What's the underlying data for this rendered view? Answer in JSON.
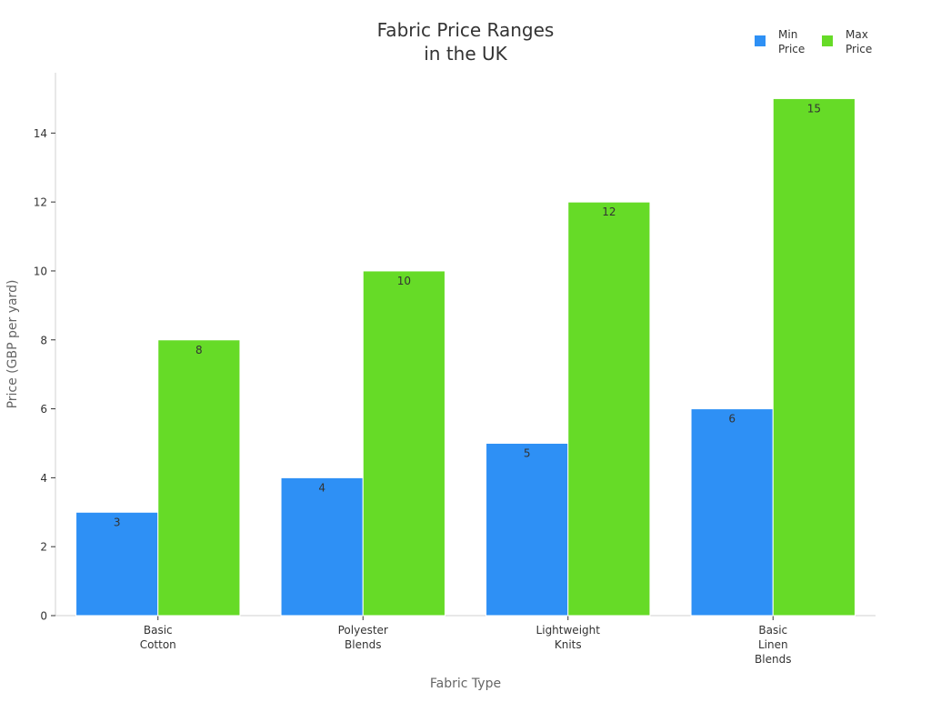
{
  "chart_data": {
    "type": "bar",
    "title": [
      "Fabric Price Ranges",
      "in the UK"
    ],
    "xlabel": "Fabric Type",
    "ylabel": "Price (GBP per yard)",
    "categories": [
      [
        "Basic",
        "Cotton"
      ],
      [
        "Polyester",
        "Blends"
      ],
      [
        "Lightweight",
        "Knits"
      ],
      [
        "Basic",
        "Linen",
        "Blends"
      ]
    ],
    "series": [
      {
        "name": [
          "Min",
          "Price"
        ],
        "color": "#2e90f5",
        "values": [
          3,
          4,
          5,
          6
        ]
      },
      {
        "name": [
          "Max",
          "Price"
        ],
        "color": "#66db27",
        "values": [
          8,
          10,
          12,
          15
        ]
      }
    ],
    "ylim": [
      0,
      15.75
    ],
    "yticks": [
      0,
      2,
      4,
      6,
      8,
      10,
      12,
      14
    ],
    "legend": "top-right",
    "grid": false
  }
}
